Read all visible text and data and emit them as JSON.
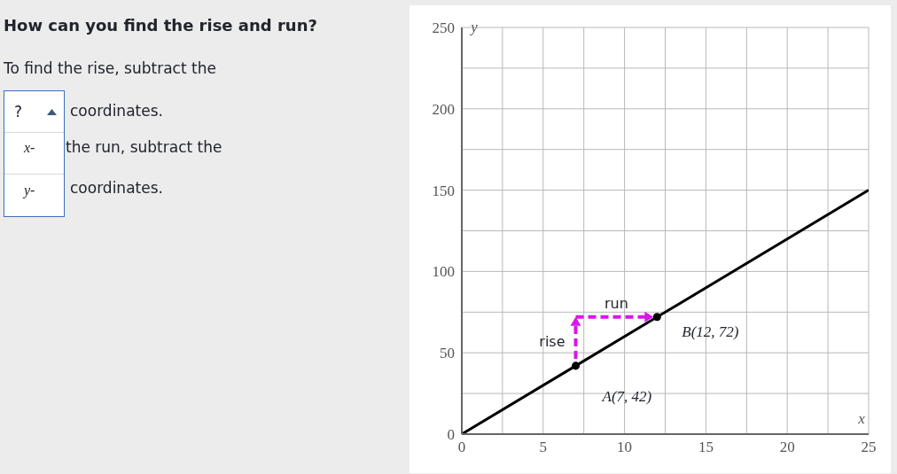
{
  "chart_data": [
    {
      "type": "other",
      "title": "How can you find the rise and run?",
      "annotations": [
        "To find the rise, subtract the",
        "?",
        "coordinates.",
        "x-",
        "the run, subtract the",
        "y-",
        "coordinates."
      ]
    },
    {
      "type": "line",
      "xlabel": "x",
      "ylabel": "y",
      "xlim": [
        0,
        25
      ],
      "xticks": [
        0,
        {
          "value": 2.5,
          "label": null
        },
        5,
        {
          "value": 7.5,
          "label": null
        },
        10,
        {
          "value": 12.5,
          "label": null
        },
        15,
        {
          "value": 17.5,
          "label": null
        },
        20,
        {
          "value": 22.5,
          "label": null
        },
        25
      ],
      "ylim": [
        0,
        250
      ],
      "yticks": [
        0,
        {
          "value": 25,
          "label": null
        },
        50,
        {
          "value": 75,
          "label": null
        },
        100,
        {
          "value": 125,
          "label": null
        },
        150,
        {
          "value": 175,
          "label": null
        },
        200,
        {
          "value": 225,
          "label": null
        },
        250
      ],
      "grid": true,
      "series": [
        {
          "type": "line",
          "color": "#000000",
          "x": [
            0,
            7,
            12,
            25
          ],
          "values": [
            0,
            42,
            72,
            150
          ],
          "marker": "none",
          "line_style": "solid"
        },
        {
          "type": "scatter",
          "color": "#000000",
          "x": [
            7,
            12
          ],
          "values": [
            42,
            72
          ],
          "marker": "circle",
          "value_labels": [
            "A(7, 42)",
            "B(12, 72)"
          ]
        }
      ],
      "annotations": [
        "rise",
        "run"
      ]
    }
  ]
}
